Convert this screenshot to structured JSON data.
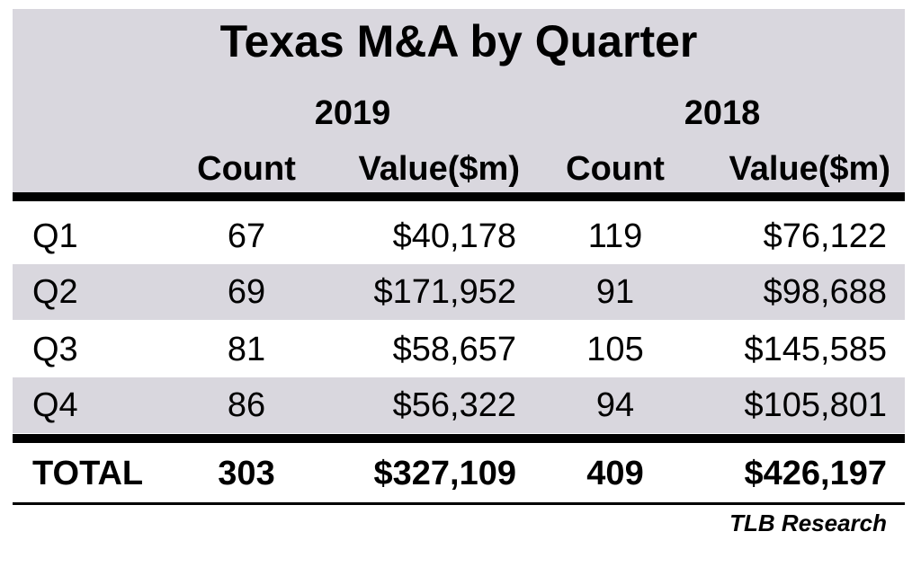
{
  "chart_data": {
    "type": "table",
    "title": "Texas M&A by Quarter",
    "years": [
      "2019",
      "2018"
    ],
    "column_headers": [
      "Count",
      "Value($m)",
      "Count",
      "Value($m)"
    ],
    "rows": [
      {
        "label": "Q1",
        "count_2019": "67",
        "value_2019": "$40,178",
        "count_2018": "119",
        "value_2018": "$76,122"
      },
      {
        "label": "Q2",
        "count_2019": "69",
        "value_2019": "$171,952",
        "count_2018": "91",
        "value_2018": "$98,688"
      },
      {
        "label": "Q3",
        "count_2019": "81",
        "value_2019": "$58,657",
        "count_2018": "105",
        "value_2018": "$145,585"
      },
      {
        "label": "Q4",
        "count_2019": "86",
        "value_2019": "$56,322",
        "count_2018": "94",
        "value_2018": "$105,801"
      }
    ],
    "total": {
      "label": "TOTAL",
      "count_2019": "303",
      "value_2019": "$327,109",
      "count_2018": "409",
      "value_2018": "$426,197"
    },
    "source": "TLB Research"
  },
  "colors": {
    "header_fill": "#d9d7de",
    "row_shade": "#d9d7de",
    "rules": "#000000"
  }
}
